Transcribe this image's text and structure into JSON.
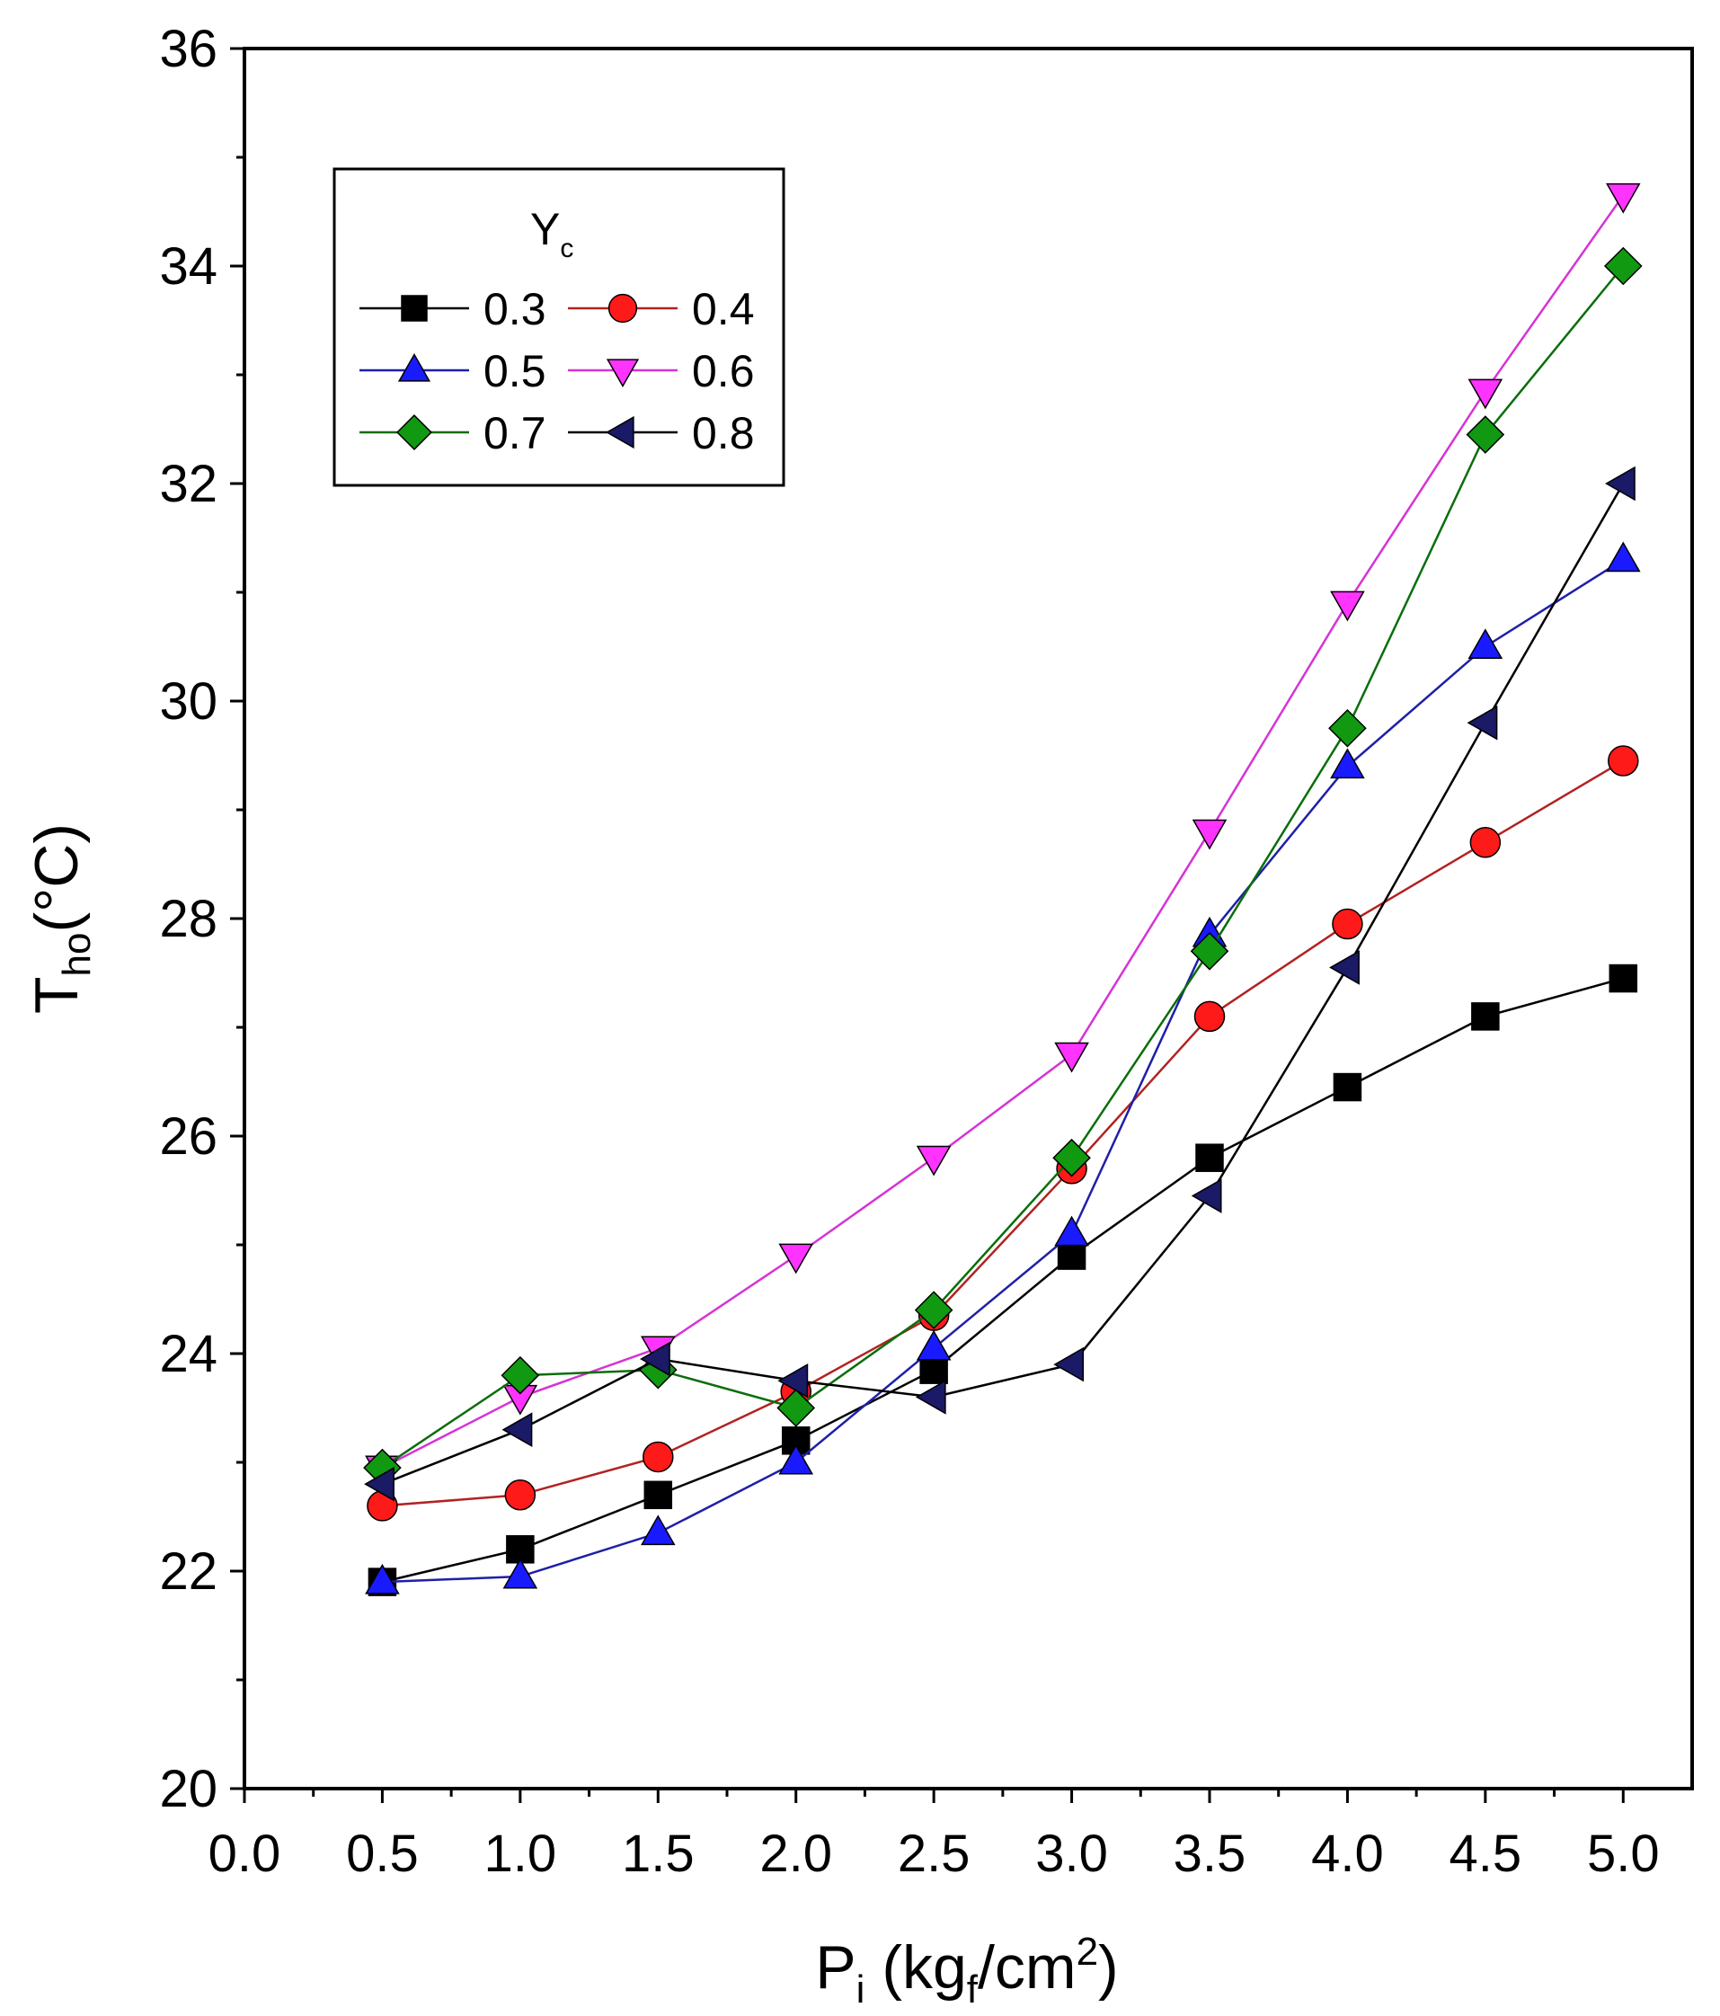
{
  "chart_data": {
    "type": "line",
    "title": "",
    "xlabel": {
      "main": "P",
      "sub": "i",
      "paren_open": " (kg",
      "sub2": "f",
      "unit": "/cm",
      "sup": "2",
      "paren_close": ")"
    },
    "ylabel": {
      "main": "T",
      "sub": "ho",
      "unit": "(°C)"
    },
    "xlim": [
      0.0,
      5.25
    ],
    "ylim": [
      20,
      36
    ],
    "x_ticks": [
      "0.0",
      "0.5",
      "1.0",
      "1.5",
      "2.0",
      "2.5",
      "3.0",
      "3.5",
      "4.0",
      "4.5",
      "5.0"
    ],
    "y_ticks": [
      "20",
      "22",
      "24",
      "26",
      "28",
      "30",
      "32",
      "34",
      "36"
    ],
    "legend": {
      "title_main": "Y",
      "title_sub": "c",
      "placement": "top-left",
      "columns": 2
    },
    "x": [
      0.5,
      1.0,
      1.5,
      2.0,
      2.5,
      3.0,
      3.5,
      4.0,
      4.5,
      5.0
    ],
    "series": [
      {
        "name": "0.3",
        "marker": "square",
        "color": "#000000",
        "line_color": "#000000",
        "values": [
          21.9,
          22.2,
          22.7,
          23.2,
          23.85,
          24.9,
          25.8,
          26.45,
          27.1,
          27.45
        ]
      },
      {
        "name": "0.4",
        "marker": "circle",
        "color": "#ff1a1a",
        "line_color": "#b22222",
        "values": [
          22.6,
          22.7,
          23.05,
          23.65,
          24.35,
          25.7,
          27.1,
          27.95,
          28.7,
          29.45
        ]
      },
      {
        "name": "0.5",
        "marker": "triangle-up",
        "color": "#1a1aff",
        "line_color": "#1f1fa8",
        "values": [
          21.9,
          21.95,
          22.35,
          23.0,
          24.05,
          25.1,
          27.85,
          29.4,
          30.5,
          31.3
        ]
      },
      {
        "name": "0.6",
        "marker": "triangle-down",
        "color": "#ff33ff",
        "line_color": "#d633d6",
        "values": [
          22.95,
          23.6,
          24.05,
          24.9,
          25.8,
          26.75,
          28.8,
          30.9,
          32.85,
          34.65
        ]
      },
      {
        "name": "0.7",
        "marker": "diamond",
        "color": "#119911",
        "line_color": "#0a6e0a",
        "values": [
          22.95,
          23.8,
          23.85,
          23.5,
          24.4,
          25.8,
          27.7,
          29.75,
          32.45,
          34.0
        ]
      },
      {
        "name": "0.8",
        "marker": "triangle-left",
        "color": "#1a1a66",
        "line_color": "#000000",
        "values": [
          22.8,
          23.3,
          23.95,
          23.75,
          23.6,
          23.9,
          25.45,
          27.55,
          29.8,
          32.0
        ]
      }
    ]
  }
}
